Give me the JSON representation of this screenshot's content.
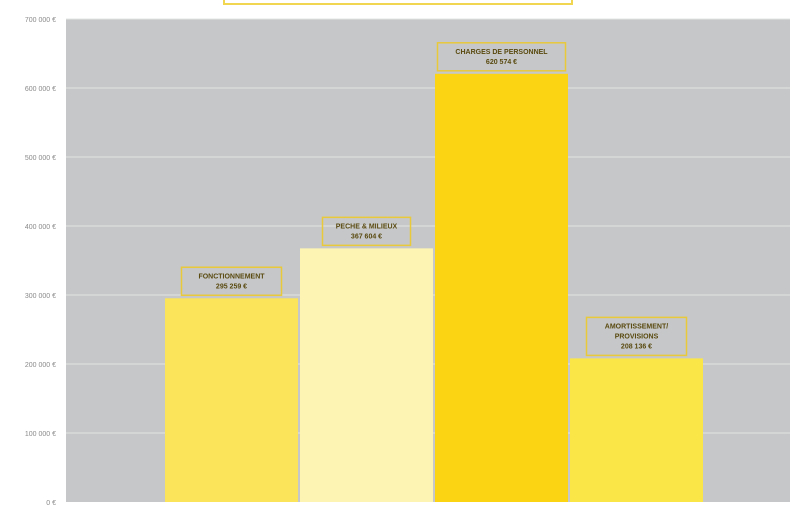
{
  "chart_data": {
    "type": "bar",
    "title": "",
    "xlabel": "",
    "ylabel": "",
    "ylim": [
      0,
      700000
    ],
    "y_ticks": [
      {
        "value": 0,
        "label": "0 €"
      },
      {
        "value": 100000,
        "label": "100 000 €"
      },
      {
        "value": 200000,
        "label": "200 000 €"
      },
      {
        "value": 300000,
        "label": "300 000 €"
      },
      {
        "value": 400000,
        "label": "400 000 €"
      },
      {
        "value": 500000,
        "label": "500 000 €"
      },
      {
        "value": 600000,
        "label": "600 000 €"
      },
      {
        "value": 700000,
        "label": "700 000 €"
      }
    ],
    "grid": true,
    "legend": "none",
    "bars": [
      {
        "category": "FONCTIONNEMENT",
        "value": 295259,
        "label_lines": [
          "FONCTIONNEMENT",
          "295 259 €"
        ],
        "color": "#fbe45a"
      },
      {
        "category": "PECHE & MILIEUX",
        "value": 367604,
        "label_lines": [
          "PECHE & MILIEUX",
          "367 604 €"
        ],
        "color": "#fdf4b4"
      },
      {
        "category": "CHARGES DE PERSONNEL",
        "value": 620574,
        "label_lines": [
          "CHARGES DE PERSONNEL",
          "620 574 €"
        ],
        "color": "#fbd414"
      },
      {
        "category": "AMORTISSEMENT/ PROVISIONS",
        "value": 208136,
        "label_lines": [
          "AMORTISSEMENT/",
          "PROVISIONS",
          "208 136 €"
        ],
        "color": "#fbe648"
      }
    ],
    "colors": {
      "plot_background": "#c5c7c8",
      "gridline": "#e3e4e5",
      "label_border": "#e9c93a",
      "label_text": "#5a4a10",
      "tick_text": "#8a8a8a"
    }
  }
}
